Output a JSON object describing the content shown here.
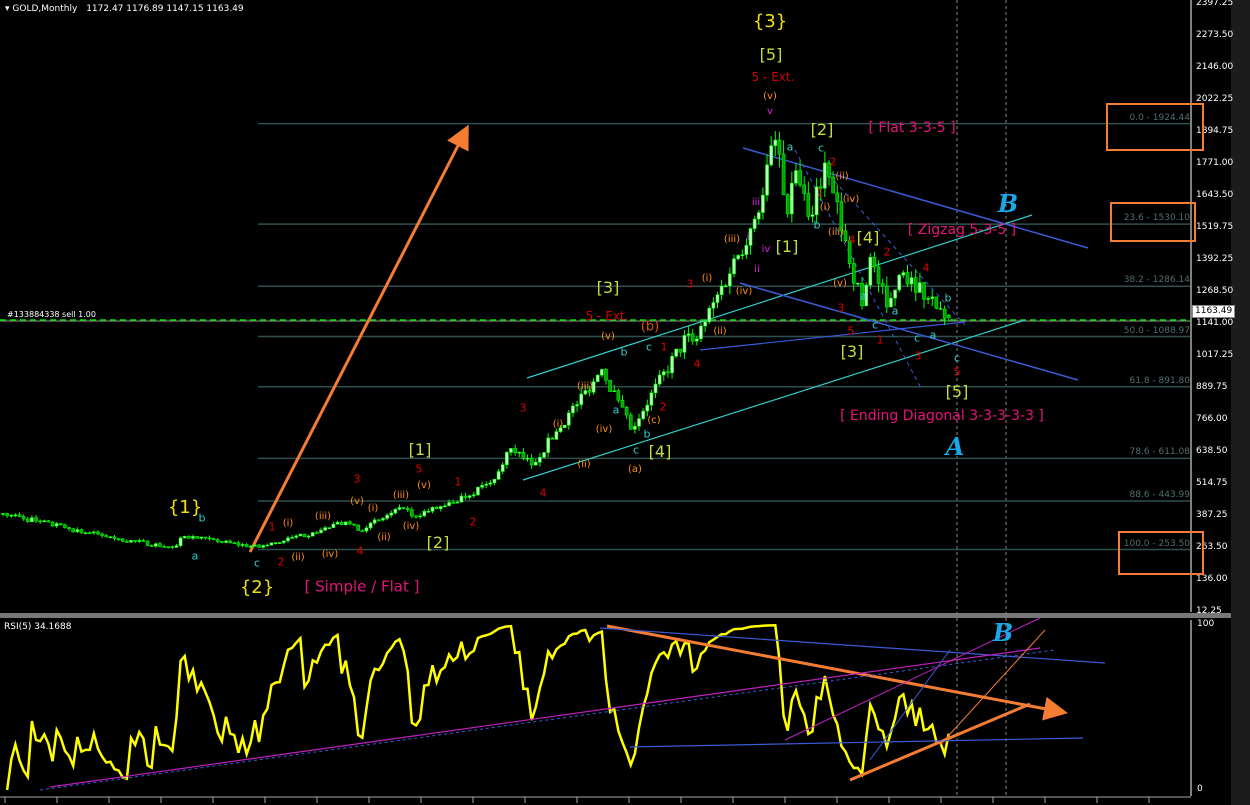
{
  "header": {
    "symbol_timeframe": "GOLD,Monthly",
    "ohlc": "1172.47 1176.89 1147.15 1163.49"
  },
  "order_line": {
    "label": "#133884338 sell 1.00"
  },
  "current_price": "1163.49",
  "rsi_panel": {
    "title": "RSI(5) 34.1688",
    "axis_top": "100",
    "axis_bottom": "0"
  },
  "colors": {
    "bull": "#b6ffb6",
    "bear": "#00a000",
    "wick": "#00ff00",
    "fib": "#2f4f4f",
    "order": "#00e000",
    "rsi": "#ffff00",
    "trend_orange": "#f57c33",
    "trend_blue": "#3b5bd6",
    "trend_cyan": "#33cccc",
    "magenta": "#c020c0"
  },
  "chart_data": {
    "type": "candlestick",
    "symbol": "GOLD",
    "timeframe": "Monthly",
    "y_ticks": [
      "2397.25",
      "2273.50",
      "2146.00",
      "2022.25",
      "1894.75",
      "1771.00",
      "1643.50",
      "1519.75",
      "1392.25",
      "1268.50",
      "1141.00",
      "1017.25",
      "889.75",
      "766.00",
      "638.50",
      "514.75",
      "387.25",
      "263.50",
      "136.00",
      "12.25"
    ],
    "ylim": [
      12.25,
      2397.25
    ],
    "swing_points": [
      {
        "date": "1996-02",
        "price": 395
      },
      {
        "date": "1997-06",
        "price": 335
      },
      {
        "date": "1998-06",
        "price": 295
      },
      {
        "date": "1999-07",
        "price": 262
      },
      {
        "date": "1999-10",
        "price": 305
      },
      {
        "date": "2000-06",
        "price": 285
      },
      {
        "date": "2001-04",
        "price": 262
      },
      {
        "date": "2002-05",
        "price": 320
      },
      {
        "date": "2003-01",
        "price": 362
      },
      {
        "date": "2003-04",
        "price": 328
      },
      {
        "date": "2004-03",
        "price": 415
      },
      {
        "date": "2004-05",
        "price": 385
      },
      {
        "date": "2005-01",
        "price": 425
      },
      {
        "date": "2005-12",
        "price": 515
      },
      {
        "date": "2006-05",
        "price": 650
      },
      {
        "date": "2006-10",
        "price": 585
      },
      {
        "date": "2008-03",
        "price": 960
      },
      {
        "date": "2008-10",
        "price": 725
      },
      {
        "date": "2009-12",
        "price": 1100
      },
      {
        "date": "2010-02",
        "price": 1080
      },
      {
        "date": "2011-04",
        "price": 1550
      },
      {
        "date": "2011-09",
        "price": 1860
      },
      {
        "date": "2011-12",
        "price": 1570
      },
      {
        "date": "2012-02",
        "price": 1740
      },
      {
        "date": "2012-05",
        "price": 1560
      },
      {
        "date": "2012-09",
        "price": 1770
      },
      {
        "date": "2013-06",
        "price": 1210
      },
      {
        "date": "2013-08",
        "price": 1400
      },
      {
        "date": "2013-12",
        "price": 1205
      },
      {
        "date": "2014-03",
        "price": 1330
      },
      {
        "date": "2014-06",
        "price": 1320
      },
      {
        "date": "2014-12",
        "price": 1200
      },
      {
        "date": "2015-03",
        "price": 1163.49
      }
    ],
    "last_bar": {
      "open": 1172.47,
      "high": 1176.89,
      "low": 1147.15,
      "close": 1163.49
    },
    "fib_levels": [
      {
        "label": "0.0 - 1924.44",
        "price": 1924.44
      },
      {
        "label": "23.6 - 1530.10",
        "price": 1530.1
      },
      {
        "label": "38.2 - 1286.14",
        "price": 1286.14
      },
      {
        "label": "50.0 - 1088.97",
        "price": 1088.97
      },
      {
        "label": "61.8 - 891.80",
        "price": 891.8
      },
      {
        "label": "78.6 - 611.08",
        "price": 611.08
      },
      {
        "label": "88.6 - 443.99",
        "price": 443.99
      },
      {
        "label": "100.0 - 253.50",
        "price": 253.5
      }
    ],
    "indicator": {
      "name": "RSI(5)",
      "value": 34.1688,
      "ylim": [
        0,
        100
      ]
    }
  },
  "annotations": {
    "big": [
      {
        "t": "{1}",
        "c": "#f0e010"
      },
      {
        "t": "{2}",
        "c": "#f0e010"
      },
      {
        "t": "{3}",
        "c": "#f0e010"
      },
      {
        "t": "[5]",
        "c": "#c8dc3c"
      },
      {
        "t": "[1]",
        "c": "#c8dc3c"
      },
      {
        "t": "[2]",
        "c": "#c8dc3c"
      },
      {
        "t": "[3]",
        "c": "#c8dc3c"
      },
      {
        "t": "[4]",
        "c": "#c8dc3c"
      },
      {
        "t": "[2]",
        "c": "#c8dc3c"
      },
      {
        "t": "[1]",
        "c": "#c8dc3c"
      },
      {
        "t": "[4]",
        "c": "#c8dc3c"
      },
      {
        "t": "[3]",
        "c": "#c8dc3c"
      },
      {
        "t": "[5]",
        "c": "#c8dc3c"
      },
      {
        "t": "[ Simple / Flat ]",
        "c": "#e6147a"
      },
      {
        "t": "[ Flat 3-3-5 ]",
        "c": "#e6147a"
      },
      {
        "t": "[ Zigzag 5-3-5 ]",
        "c": "#e6147a"
      },
      {
        "t": "[ Ending Diagonal 3-3-3-3-3 ]",
        "c": "#e6147a"
      },
      {
        "t": "5 - Ext.",
        "c": "#d00000"
      },
      {
        "t": "5 - Ext.",
        "c": "#d00000"
      },
      {
        "t": "(b)",
        "c": "#e05010"
      }
    ],
    "script_letters": [
      {
        "t": "B",
        "c": "#1aa8e8"
      },
      {
        "t": "A",
        "c": "#1aa8e8"
      },
      {
        "t": "B",
        "c": "#1aa8e8"
      }
    ],
    "red": [
      "1",
      "2",
      "3",
      "4",
      "5",
      "1",
      "2",
      "3",
      "4",
      "3",
      "4",
      "1",
      "2",
      "2",
      "1",
      "4",
      "2",
      "4",
      "3",
      "5",
      "1",
      "3",
      "5"
    ],
    "orange": [
      "(i)",
      "(ii)",
      "(iii)",
      "(iv)",
      "(v)",
      "(i)",
      "(ii)",
      "(iii)",
      "(iv)",
      "(v)",
      "(i)",
      "(ii)",
      "(iii)",
      "(iv)",
      "(v)",
      "(i)",
      "(ii)",
      "(iii)",
      "(iv)",
      "(v)",
      "(a)",
      "(c)",
      "(ii)",
      "(iv)",
      "(iii)",
      "(i)",
      "(v)"
    ],
    "cyan": [
      "a",
      "b",
      "c",
      "a",
      "b",
      "c",
      "b",
      "c",
      "a",
      "c",
      "b",
      "a",
      "c",
      "a",
      "b",
      "c",
      "a",
      "c"
    ],
    "magenta": [
      "v",
      "iii",
      "i",
      "ii",
      "iv"
    ]
  }
}
